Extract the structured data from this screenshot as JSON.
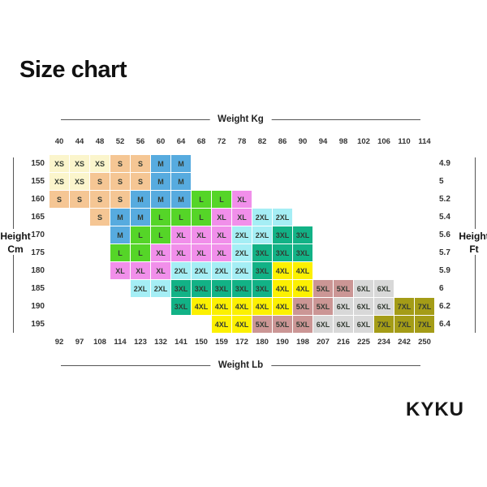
{
  "title": "Size chart",
  "brand": "KYKU",
  "axes": {
    "top_label": "Weight Kg",
    "bottom_label": "Weight Lb",
    "left_label": "Height\nCm",
    "right_label": "Height\nFt"
  },
  "chart_data": {
    "type": "heatmap",
    "title": "Size chart",
    "x_top_axis": {
      "label": "Weight Kg",
      "ticks": [
        40,
        44,
        48,
        52,
        56,
        60,
        64,
        68,
        72,
        78,
        82,
        86,
        90,
        94,
        98,
        102,
        106,
        110,
        114
      ]
    },
    "x_bottom_axis": {
      "label": "Weight Lb",
      "ticks": [
        92,
        97,
        108,
        114,
        123,
        132,
        141,
        150,
        159,
        172,
        180,
        190,
        198,
        207,
        216,
        225,
        234,
        242,
        250
      ]
    },
    "y_left_axis": {
      "label": "Height Cm",
      "ticks": [
        150,
        155,
        160,
        165,
        170,
        175,
        180,
        185,
        190,
        195
      ]
    },
    "y_right_axis": {
      "label": "Height Ft",
      "ticks": [
        "4.9",
        "5",
        "5.2",
        "5.4",
        "5.6",
        "5.7",
        "5.9",
        "6",
        "6.2",
        "6.4"
      ]
    },
    "size_colors": {
      "XS": "#FBF5CC",
      "S": "#F5C694",
      "M": "#57ABDF",
      "L": "#55D528",
      "XL": "#F18FEA",
      "2XL": "#A5EEF5",
      "3XL": "#12B286",
      "4XL": "#FCF001",
      "5XL": "#CB9695",
      "6XL": "#D8D8D8",
      "7XL": "#A49C17"
    },
    "rows": [
      {
        "cm": "150",
        "ft": "4.9",
        "start": 0,
        "sizes": [
          "XS",
          "XS",
          "XS",
          "S",
          "S",
          "M",
          "M"
        ]
      },
      {
        "cm": "155",
        "ft": "5",
        "start": 0,
        "sizes": [
          "XS",
          "XS",
          "S",
          "S",
          "S",
          "M",
          "M"
        ]
      },
      {
        "cm": "160",
        "ft": "5.2",
        "start": 0,
        "sizes": [
          "S",
          "S",
          "S",
          "S",
          "M",
          "M",
          "M",
          "L",
          "L",
          "XL"
        ]
      },
      {
        "cm": "165",
        "ft": "5.4",
        "start": 2,
        "sizes": [
          "S",
          "M",
          "M",
          "L",
          "L",
          "L",
          "XL",
          "XL",
          "2XL",
          "2XL"
        ]
      },
      {
        "cm": "170",
        "ft": "5.6",
        "start": 3,
        "sizes": [
          "M",
          "L",
          "L",
          "XL",
          "XL",
          "XL",
          "2XL",
          "2XL",
          "3XL",
          "3XL"
        ]
      },
      {
        "cm": "175",
        "ft": "5.7",
        "start": 3,
        "sizes": [
          "L",
          "L",
          "XL",
          "XL",
          "XL",
          "XL",
          "2XL",
          "3XL",
          "3XL",
          "3XL"
        ]
      },
      {
        "cm": "180",
        "ft": "5.9",
        "start": 3,
        "sizes": [
          "XL",
          "XL",
          "XL",
          "2XL",
          "2XL",
          "2XL",
          "2XL",
          "3XL",
          "4XL",
          "4XL"
        ]
      },
      {
        "cm": "185",
        "ft": "6",
        "start": 4,
        "sizes": [
          "2XL",
          "2XL",
          "3XL",
          "3XL",
          "3XL",
          "3XL",
          "3XL",
          "4XL",
          "4XL",
          "5XL",
          "5XL",
          "6XL",
          "6XL"
        ]
      },
      {
        "cm": "190",
        "ft": "6.2",
        "start": 6,
        "sizes": [
          "3XL",
          "4XL",
          "4XL",
          "4XL",
          "4XL",
          "4XL",
          "5XL",
          "5XL",
          "6XL",
          "6XL",
          "6XL",
          "7XL",
          "7XL"
        ]
      },
      {
        "cm": "195",
        "ft": "6.4",
        "start": 8,
        "sizes": [
          "4XL",
          "4XL",
          "5XL",
          "5XL",
          "5XL",
          "6XL",
          "6XL",
          "6XL",
          "7XL",
          "7XL",
          "7XL"
        ]
      }
    ]
  }
}
